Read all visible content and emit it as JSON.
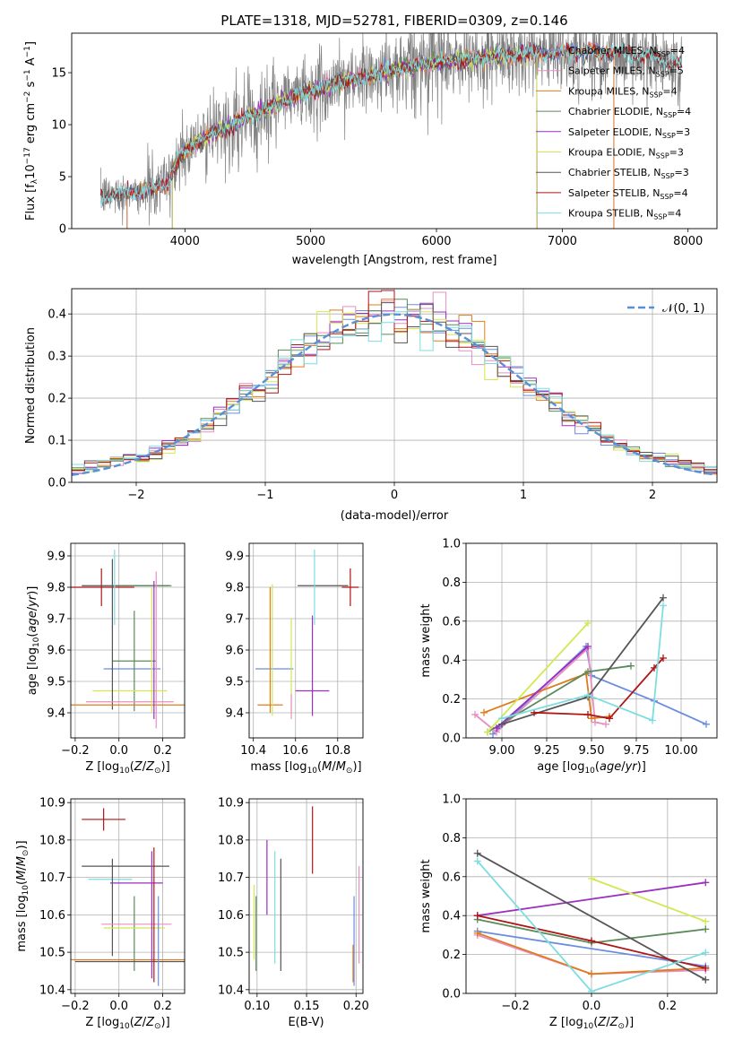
{
  "figure": {
    "title": "PLATE=1318, MJD=52781, FIBERID=0309, z=0.146"
  },
  "colors": {
    "chabrier_miles": "#6a8ddf",
    "salpeter_miles": "#e88fc2",
    "kroupa_miles": "#e07b1c",
    "chabrier_elodie": "#5b8a5b",
    "salpeter_elodie": "#9a2fc0",
    "kroupa_elodie": "#d2e851",
    "chabrier_stelib": "#555555",
    "salpeter_stelib": "#b01515",
    "kroupa_stelib": "#7ddde0",
    "data": "#808080",
    "normal": "#5a8fd8"
  },
  "chart_data": [
    {
      "id": "spectrum",
      "type": "line",
      "xlabel": "wavelength [Angstrom, rest frame]",
      "ylabel": "Flux [f_λ 10^-17 erg cm^-2 s^-1 A^-1]",
      "xlim": [
        3100,
        8230
      ],
      "ylim": [
        0,
        18.8
      ],
      "xticks": [
        4000,
        5000,
        6000,
        7000,
        8000
      ],
      "yticks": [
        0,
        5,
        10,
        15
      ],
      "legend_position": "upper right",
      "legend": [
        {
          "key": "chabrier_miles",
          "label": "Chabrier MILES, N_SSP=4"
        },
        {
          "key": "salpeter_miles",
          "label": "Salpeter MILES, N_SSP=5"
        },
        {
          "key": "kroupa_miles",
          "label": "Kroupa MILES, N_SSP=4"
        },
        {
          "key": "chabrier_elodie",
          "label": "Chabrier ELODIE, N_SSP=4"
        },
        {
          "key": "salpeter_elodie",
          "label": "Salpeter ELODIE, N_SSP=3"
        },
        {
          "key": "kroupa_elodie",
          "label": "Kroupa ELODIE, N_SSP=3"
        },
        {
          "key": "chabrier_stelib",
          "label": "Chabrier STELIB, N_SSP=3"
        },
        {
          "key": "salpeter_stelib",
          "label": "Salpeter STELIB, N_SSP=4"
        },
        {
          "key": "kroupa_stelib",
          "label": "Kroupa STELIB, N_SSP=4"
        }
      ],
      "continuum": [
        [
          3330,
          3.1
        ],
        [
          3500,
          3.4
        ],
        [
          3700,
          3.6
        ],
        [
          3850,
          4.3
        ],
        [
          3950,
          6.8
        ],
        [
          4100,
          8.4
        ],
        [
          4300,
          9.6
        ],
        [
          4500,
          10.8
        ],
        [
          4700,
          11.8
        ],
        [
          4900,
          12.8
        ],
        [
          5100,
          13.6
        ],
        [
          5300,
          14.3
        ],
        [
          5500,
          14.8
        ],
        [
          5700,
          15.4
        ],
        [
          5900,
          15.8
        ],
        [
          6100,
          16.1
        ],
        [
          6300,
          16.4
        ],
        [
          6500,
          16.6
        ],
        [
          6700,
          16.8
        ],
        [
          6900,
          16.9
        ],
        [
          7100,
          17.0
        ],
        [
          7300,
          17.0
        ],
        [
          7500,
          16.9
        ],
        [
          7700,
          16.5
        ],
        [
          7900,
          15.9
        ]
      ],
      "data_range": [
        3330,
        7950
      ],
      "model_ranges": {
        "chabrier_miles": [
          3540,
          7410
        ],
        "salpeter_miles": [
          3540,
          7410
        ],
        "kroupa_miles": [
          3540,
          7410
        ],
        "chabrier_elodie": [
          3900,
          6800
        ],
        "salpeter_elodie": [
          3900,
          6800
        ],
        "kroupa_elodie": [
          3900,
          6800
        ],
        "chabrier_stelib": [
          3330,
          7950
        ],
        "salpeter_stelib": [
          3330,
          7950
        ],
        "kroupa_stelib": [
          3330,
          7950
        ]
      }
    },
    {
      "id": "residual_hist",
      "type": "step-histogram",
      "xlabel": "(data-model)/error",
      "ylabel": "Normed distribution",
      "xlim": [
        -2.5,
        2.5
      ],
      "ylim": [
        0,
        0.46
      ],
      "xticks": [
        -2,
        -1,
        0,
        1,
        2
      ],
      "yticks": [
        0.0,
        0.1,
        0.2,
        0.3,
        0.4
      ],
      "bin_width": 0.1,
      "grid": true,
      "normal_label": "𝒩(0, 1)",
      "legend_position": "upper right"
    },
    {
      "id": "age_vs_Z",
      "type": "errorbar",
      "xlabel": "Z [log10(Z/Z⊙)]",
      "ylabel": "age [log10(age/yr)]",
      "xlim": [
        -0.22,
        0.3
      ],
      "ylim": [
        9.32,
        9.94
      ],
      "xticks": [
        -0.2,
        0.0,
        0.2
      ],
      "yticks": [
        9.4,
        9.5,
        9.6,
        9.7,
        9.8,
        9.9
      ],
      "grid": true,
      "points": [
        {
          "key": "salpeter_stelib",
          "x": -0.08,
          "xerr": 0.15,
          "y": 9.8,
          "yerr": 0.06
        },
        {
          "key": "chabrier_stelib",
          "x": 0.03,
          "xerr": 0.2,
          "y": 9.805,
          "yerr": 0.0
        },
        {
          "key": "chabrier_elodie",
          "x": 0.12,
          "xerr": 0.12,
          "y": 9.805,
          "yerr": 0.0
        },
        {
          "key": "kroupa_stelib",
          "x": -0.02,
          "xerr": 0.0,
          "y": 9.8,
          "yerr": 0.12
        },
        {
          "key": "chabrier_miles",
          "x": 0.06,
          "xerr": 0.13,
          "y": 9.54,
          "yerr": 0.0
        },
        {
          "key": "chabrier_elodie",
          "x": 0.07,
          "xerr": 0.1,
          "y": 9.565,
          "yerr": 0.16
        },
        {
          "key": "kroupa_elodie",
          "x": 0.05,
          "xerr": 0.17,
          "y": 9.47,
          "yerr": 0.0
        },
        {
          "key": "chabrier_stelib",
          "x": -0.03,
          "xerr": 0.0,
          "y": 9.65,
          "yerr": 0.24
        },
        {
          "key": "salpeter_miles",
          "x": 0.05,
          "xerr": 0.2,
          "y": 9.435,
          "yerr": 0.0
        },
        {
          "key": "kroupa_miles",
          "x": 0.03,
          "xerr": 0.27,
          "y": 9.425,
          "yerr": 0.0
        },
        {
          "key": "kroupa_elodie",
          "x": 0.15,
          "xerr": 0.0,
          "y": 9.6,
          "yerr": 0.2
        },
        {
          "key": "salpeter_elodie",
          "x": 0.16,
          "xerr": 0.0,
          "y": 9.6,
          "yerr": 0.22
        },
        {
          "key": "salpeter_miles",
          "x": 0.17,
          "xerr": 0.0,
          "y": 9.6,
          "yerr": 0.25
        }
      ]
    },
    {
      "id": "age_vs_mass",
      "type": "errorbar",
      "xlabel": "mass [log10(M/M⊙)]",
      "ylabel": "",
      "xlim": [
        10.38,
        10.92
      ],
      "ylim": [
        9.32,
        9.94
      ],
      "xticks": [
        10.4,
        10.6,
        10.8
      ],
      "yticks": [
        9.4,
        9.5,
        9.6,
        9.7,
        9.8,
        9.9
      ],
      "grid": true,
      "points": [
        {
          "key": "salpeter_stelib",
          "x": 10.86,
          "xerr": 0.04,
          "y": 9.8,
          "yerr": 0.06
        },
        {
          "key": "chabrier_stelib",
          "x": 10.73,
          "xerr": 0.12,
          "y": 9.805,
          "yerr": 0.0
        },
        {
          "key": "kroupa_stelib",
          "x": 10.69,
          "xerr": 0.0,
          "y": 9.8,
          "yerr": 0.12
        },
        {
          "key": "chabrier_miles",
          "x": 10.5,
          "xerr": 0.09,
          "y": 9.54,
          "yerr": 0.0
        },
        {
          "key": "chabrier_elodie",
          "x": 10.6,
          "xerr": 0.0,
          "y": 9.565,
          "yerr": 0.0
        },
        {
          "key": "salpeter_elodie",
          "x": 10.68,
          "xerr": 0.08,
          "y": 9.47,
          "yerr": 0.0
        },
        {
          "key": "salpeter_elodie",
          "x": 10.68,
          "xerr": 0.0,
          "y": 9.55,
          "yerr": 0.16
        },
        {
          "key": "kroupa_miles",
          "x": 10.48,
          "xerr": 0.06,
          "y": 9.425,
          "yerr": 0.0
        },
        {
          "key": "kroupa_elodie",
          "x": 10.58,
          "xerr": 0.0,
          "y": 9.55,
          "yerr": 0.15
        },
        {
          "key": "salpeter_miles",
          "x": 10.58,
          "xerr": 0.0,
          "y": 9.42,
          "yerr": 0.04
        },
        {
          "key": "kroupa_miles",
          "x": 10.48,
          "xerr": 0.0,
          "y": 9.6,
          "yerr": 0.2
        },
        {
          "key": "kroupa_elodie",
          "x": 10.49,
          "xerr": 0.0,
          "y": 9.6,
          "yerr": 0.21
        }
      ]
    },
    {
      "id": "weight_vs_age",
      "type": "line",
      "xlabel": "age [log10(age/yr)]",
      "ylabel": "mass weight",
      "xlim": [
        8.8,
        10.2
      ],
      "ylim": [
        0,
        1
      ],
      "xticks": [
        9.0,
        9.25,
        9.5,
        9.75,
        10.0
      ],
      "yticks": [
        0.0,
        0.2,
        0.4,
        0.6,
        0.8,
        1.0
      ],
      "grid": true,
      "series": [
        {
          "key": "chabrier_miles",
          "points": [
            [
              8.95,
              0.02
            ],
            [
              9.47,
              0.47
            ],
            [
              9.5,
              0.32
            ],
            [
              9.85,
              0.19
            ],
            [
              10.14,
              0.07
            ]
          ]
        },
        {
          "key": "salpeter_miles",
          "points": [
            [
              8.85,
              0.12
            ],
            [
              8.97,
              0.03
            ],
            [
              9.48,
              0.46
            ],
            [
              9.52,
              0.08
            ],
            [
              9.58,
              0.07
            ]
          ]
        },
        {
          "key": "kroupa_miles",
          "points": [
            [
              8.9,
              0.13
            ],
            [
              9.47,
              0.33
            ],
            [
              9.5,
              0.1
            ],
            [
              9.6,
              0.11
            ]
          ]
        },
        {
          "key": "chabrier_elodie",
          "points": [
            [
              8.92,
              0.03
            ],
            [
              9.48,
              0.34
            ],
            [
              9.72,
              0.37
            ]
          ]
        },
        {
          "key": "salpeter_elodie",
          "points": [
            [
              8.97,
              0.05
            ],
            [
              9.48,
              0.47
            ]
          ]
        },
        {
          "key": "kroupa_elodie",
          "points": [
            [
              8.92,
              0.03
            ],
            [
              9.48,
              0.59
            ]
          ]
        },
        {
          "key": "chabrier_stelib",
          "points": [
            [
              9.0,
              0.07
            ],
            [
              9.48,
              0.21
            ],
            [
              9.9,
              0.72
            ]
          ]
        },
        {
          "key": "salpeter_stelib",
          "points": [
            [
              9.18,
              0.13
            ],
            [
              9.48,
              0.12
            ],
            [
              9.6,
              0.1
            ],
            [
              9.85,
              0.36
            ],
            [
              9.9,
              0.41
            ]
          ]
        },
        {
          "key": "kroupa_stelib",
          "points": [
            [
              9.0,
              0.1
            ],
            [
              9.48,
              0.22
            ],
            [
              9.84,
              0.09
            ],
            [
              9.9,
              0.68
            ]
          ]
        }
      ]
    },
    {
      "id": "mass_vs_Z",
      "type": "errorbar",
      "xlabel": "Z [log10(Z/Z⊙)]",
      "ylabel": "mass [log10(M/M⊙)]",
      "xlim": [
        -0.22,
        0.3
      ],
      "ylim": [
        10.39,
        10.91
      ],
      "xticks": [
        -0.2,
        0.0,
        0.2
      ],
      "yticks": [
        10.4,
        10.5,
        10.6,
        10.7,
        10.8,
        10.9
      ],
      "grid": true,
      "points": [
        {
          "key": "salpeter_stelib",
          "x": -0.07,
          "xerr": 0.1,
          "y": 10.855,
          "yerr": 0.03
        },
        {
          "key": "chabrier_stelib",
          "x": 0.03,
          "xerr": 0.2,
          "y": 10.73,
          "yerr": 0.0
        },
        {
          "key": "kroupa_stelib",
          "x": -0.04,
          "xerr": 0.1,
          "y": 10.695,
          "yerr": 0.0
        },
        {
          "key": "salpeter_elodie",
          "x": 0.08,
          "xerr": 0.12,
          "y": 10.685,
          "yerr": 0.0
        },
        {
          "key": "chabrier_stelib",
          "x": -0.03,
          "xerr": 0.0,
          "y": 10.62,
          "yerr": 0.13
        },
        {
          "key": "chabrier_elodie",
          "x": 0.07,
          "xerr": 0.0,
          "y": 10.55,
          "yerr": 0.1
        },
        {
          "key": "salpeter_miles",
          "x": 0.08,
          "xerr": 0.16,
          "y": 10.575,
          "yerr": 0.0
        },
        {
          "key": "kroupa_elodie",
          "x": 0.07,
          "xerr": 0.14,
          "y": 10.565,
          "yerr": 0.0
        },
        {
          "key": "kroupa_miles",
          "x": 0.03,
          "xerr": 0.27,
          "y": 10.48,
          "yerr": 0.0
        },
        {
          "key": "chabrier_stelib",
          "x": 0.05,
          "xerr": 0.25,
          "y": 10.475,
          "yerr": 0.0
        },
        {
          "key": "salpeter_elodie",
          "x": 0.15,
          "xerr": 0.0,
          "y": 10.6,
          "yerr": 0.17
        },
        {
          "key": "salpeter_stelib",
          "x": 0.16,
          "xerr": 0.0,
          "y": 10.6,
          "yerr": 0.18
        },
        {
          "key": "chabrier_miles",
          "x": 0.18,
          "xerr": 0.0,
          "y": 10.53,
          "yerr": 0.12
        }
      ]
    },
    {
      "id": "mass_vs_ebv",
      "type": "errorbar",
      "xlabel": "E(B-V)",
      "ylabel": "",
      "xlim": [
        0.092,
        0.207
      ],
      "ylim": [
        10.39,
        10.91
      ],
      "xticks": [
        0.1,
        0.15,
        0.2
      ],
      "yticks": [
        10.4,
        10.5,
        10.6,
        10.7,
        10.8,
        10.9
      ],
      "grid": true,
      "points": [
        {
          "key": "kroupa_elodie",
          "x": 0.097,
          "xerr": 0.0,
          "y": 10.58,
          "yerr": 0.1
        },
        {
          "key": "chabrier_elodie",
          "x": 0.099,
          "xerr": 0.0,
          "y": 10.55,
          "yerr": 0.1
        },
        {
          "key": "salpeter_elodie",
          "x": 0.11,
          "xerr": 0.0,
          "y": 10.7,
          "yerr": 0.1
        },
        {
          "key": "kroupa_stelib",
          "x": 0.118,
          "xerr": 0.0,
          "y": 10.62,
          "yerr": 0.15
        },
        {
          "key": "chabrier_stelib",
          "x": 0.124,
          "xerr": 0.0,
          "y": 10.6,
          "yerr": 0.15
        },
        {
          "key": "salpeter_stelib",
          "x": 0.156,
          "xerr": 0.0,
          "y": 10.8,
          "yerr": 0.09
        },
        {
          "key": "chabrier_miles",
          "x": 0.198,
          "xerr": 0.0,
          "y": 10.53,
          "yerr": 0.12
        },
        {
          "key": "salpeter_miles",
          "x": 0.203,
          "xerr": 0.0,
          "y": 10.6,
          "yerr": 0.13
        },
        {
          "key": "kroupa_miles",
          "x": 0.197,
          "xerr": 0.0,
          "y": 10.47,
          "yerr": 0.05
        }
      ]
    },
    {
      "id": "weight_vs_Z",
      "type": "line",
      "xlabel": "Z [log10(Z/Z⊙)]",
      "ylabel": "mass weight",
      "xlim": [
        -0.33,
        0.33
      ],
      "ylim": [
        0,
        1
      ],
      "xticks": [
        -0.2,
        0.0,
        0.2
      ],
      "yticks": [
        0.0,
        0.2,
        0.4,
        0.6,
        0.8,
        1.0
      ],
      "grid": true,
      "series": [
        {
          "key": "chabrier_miles",
          "points": [
            [
              -0.3,
              0.32
            ],
            [
              0.3,
              0.14
            ]
          ]
        },
        {
          "key": "salpeter_miles",
          "points": [
            [
              -0.3,
              0.3
            ],
            [
              0.0,
              0.1
            ],
            [
              0.3,
              0.12
            ]
          ]
        },
        {
          "key": "kroupa_miles",
          "points": [
            [
              -0.3,
              0.31
            ],
            [
              0.0,
              0.1
            ],
            [
              0.3,
              0.13
            ]
          ]
        },
        {
          "key": "chabrier_elodie",
          "points": [
            [
              -0.3,
              0.38
            ],
            [
              0.0,
              0.26
            ],
            [
              0.3,
              0.33
            ]
          ]
        },
        {
          "key": "salpeter_elodie",
          "points": [
            [
              -0.3,
              0.4
            ],
            [
              0.3,
              0.57
            ]
          ]
        },
        {
          "key": "kroupa_elodie",
          "points": [
            [
              0.0,
              0.59
            ],
            [
              0.3,
              0.37
            ]
          ]
        },
        {
          "key": "chabrier_stelib",
          "points": [
            [
              -0.3,
              0.72
            ],
            [
              0.3,
              0.07
            ]
          ]
        },
        {
          "key": "salpeter_stelib",
          "points": [
            [
              -0.3,
              0.4
            ],
            [
              0.0,
              0.27
            ],
            [
              0.3,
              0.13
            ]
          ]
        },
        {
          "key": "kroupa_stelib",
          "points": [
            [
              -0.3,
              0.68
            ],
            [
              0.0,
              0.01
            ],
            [
              0.3,
              0.21
            ]
          ]
        }
      ]
    }
  ]
}
